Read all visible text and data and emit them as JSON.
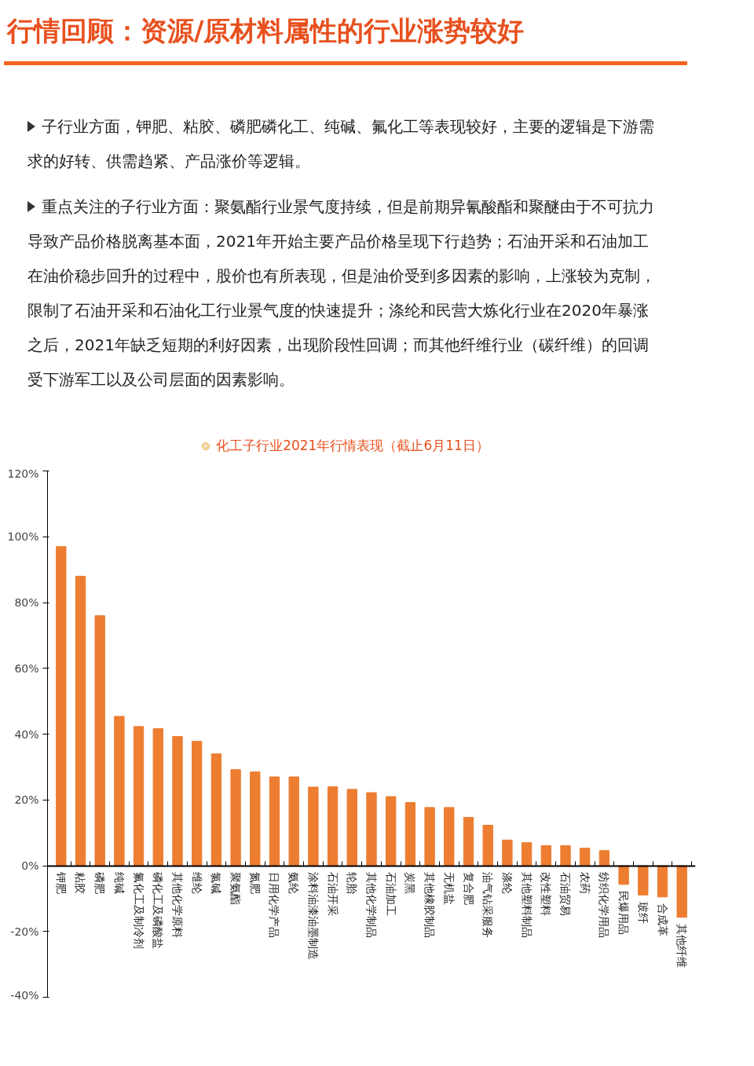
{
  "chart_data": {
    "type": "bar",
    "title": "行情回顾：资源/原材料属性的行业涨势较好",
    "annotations": [
      "子行业方面，钾肥、粘胶、磷肥磷化工、纯碱、氟化工等表现较好，主要的逻辑是下游需求的好转、供需趋紧、产品涨价等逻辑。",
      "重点关注的子行业方面：聚氨酯行业景气度持续，但是前期异氰酸酯和聚醚由于不可抗力导致产品价格脱离基本面，2021年开始主要产品价格呈现下行趋势；石油开采和石油加工在油价稳步回升的过程中，股价也有所表现，但是油价受到多因素的影响，上涨较为克制，限制了石油开采和石油化工行业景气度的快速提升；涤纶和民营大炼化行业在2020年暴涨之后，2021年缺乏短期的利好因素，出现阶段性回调；而其他纤维行业（碳纤维）的回调受下游军工以及公司层面的因素影响。"
    ],
    "subtitle": "化工子行业2021年行情表现（截止6月11日）",
    "categories": [
      "钾肥",
      "粘胶",
      "磷肥",
      "纯碱",
      "氟化工及制冷剂",
      "磷化工及磷酸盐",
      "其他化学原料",
      "维纶",
      "氯碱",
      "聚氨酯",
      "氮肥",
      "日用化学产品",
      "氨纶",
      "涂料油漆油墨制造",
      "石油开采",
      "轮胎",
      "其他化学制品",
      "石油加工",
      "炭黑",
      "其他橡胶制品",
      "无机盐",
      "复合肥",
      "油气钻采服务",
      "涤纶",
      "其他塑料制品",
      "改性塑料",
      "石油贸易",
      "农药",
      "纺织化学用品",
      "民爆用品",
      "玻纤",
      "合成革",
      "其他纤维"
    ],
    "values": [
      97,
      88,
      76,
      45.4,
      42.3,
      41.7,
      39.3,
      37.8,
      34,
      29.2,
      28.5,
      27,
      27,
      23.9,
      24,
      23.2,
      22.2,
      21,
      19.2,
      17.7,
      17.7,
      14.7,
      12.3,
      7.8,
      7,
      6.1,
      6.1,
      5.3,
      4.6,
      -5.7,
      -8.9,
      -9.5,
      -15.7
    ],
    "color": "#ed7d31",
    "ylim": [
      -40,
      120
    ],
    "yticks": [
      {
        "value": -40,
        "label": "-40%"
      },
      {
        "value": -20,
        "label": "-20%"
      },
      {
        "value": 0,
        "label": "0%"
      },
      {
        "value": 20,
        "label": "20%"
      },
      {
        "value": 40,
        "label": "40%"
      },
      {
        "value": 60,
        "label": "60%"
      },
      {
        "value": 80,
        "label": "80%"
      },
      {
        "value": 100,
        "label": "100%"
      },
      {
        "value": 120,
        "label": "120%"
      }
    ],
    "grid": false
  }
}
